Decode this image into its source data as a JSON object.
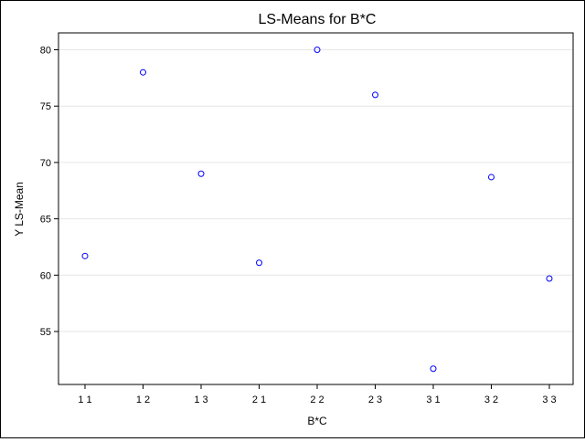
{
  "chart_data": {
    "type": "scatter",
    "title": "LS-Means for B*C",
    "xlabel": "B*C",
    "ylabel": "Y LS-Mean",
    "categories": [
      "1 1",
      "1 2",
      "1 3",
      "2 1",
      "2 2",
      "2 3",
      "3 1",
      "3 2",
      "3 3"
    ],
    "values": [
      61.7,
      78.0,
      69.0,
      61.1,
      80.0,
      76.0,
      51.7,
      68.7,
      59.7
    ],
    "y_ticks": [
      55,
      60,
      65,
      70,
      75,
      80
    ],
    "ylim": [
      50.3,
      81.5
    ],
    "grid": true,
    "marker_color": "#0000ff",
    "marker": "open-circle"
  }
}
